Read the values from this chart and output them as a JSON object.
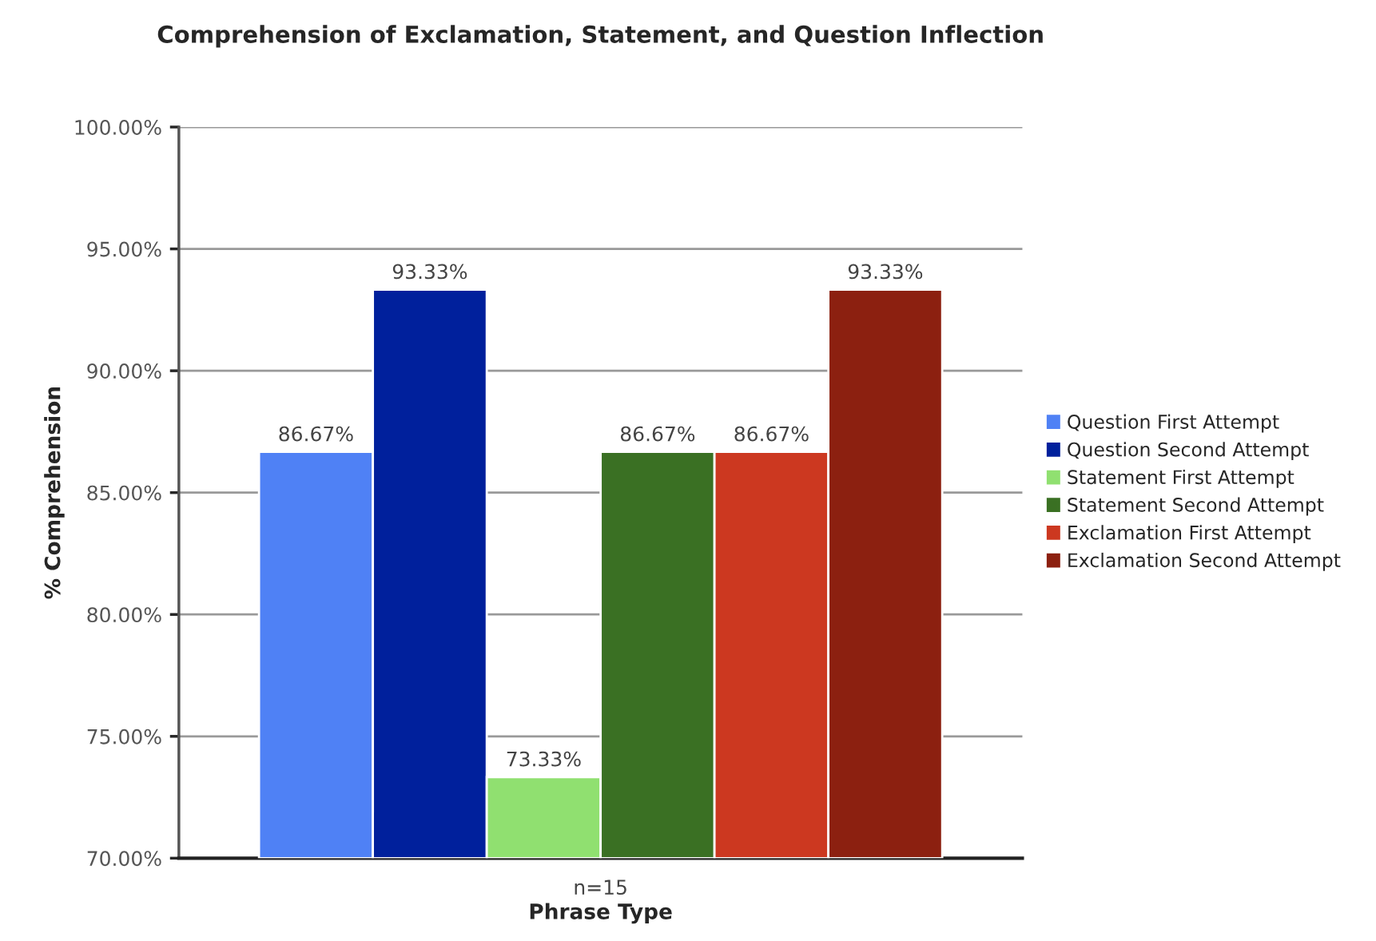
{
  "chart_data": {
    "type": "bar",
    "title": "Comprehension of Exclamation, Statement, and Question Inflection",
    "xlabel": "Phrase Type",
    "ylabel": "% Comprehension",
    "categories": [
      "n=15"
    ],
    "series": [
      {
        "name": "Question First Attempt",
        "color": "#4f81f5",
        "values": [
          86.67
        ],
        "value_labels": [
          "86.67%"
        ]
      },
      {
        "name": "Question Second Attempt",
        "color": "#00209c",
        "values": [
          93.33
        ],
        "value_labels": [
          "93.33%"
        ]
      },
      {
        "name": "Statement First Attempt",
        "color": "#90e070",
        "values": [
          73.33
        ],
        "value_labels": [
          "73.33%"
        ]
      },
      {
        "name": "Statement Second Attempt",
        "color": "#3a7023",
        "values": [
          86.67
        ],
        "value_labels": [
          "86.67%"
        ]
      },
      {
        "name": "Exclamation First Attempt",
        "color": "#cc3820",
        "values": [
          86.67
        ],
        "value_labels": [
          "86.67%"
        ]
      },
      {
        "name": "Exclamation Second Attempt",
        "color": "#8c2010",
        "values": [
          93.33
        ],
        "value_labels": [
          "93.33%"
        ]
      }
    ],
    "ylim": [
      70,
      100
    ],
    "yticks": [
      {
        "value": 70,
        "label": "70.00%"
      },
      {
        "value": 75,
        "label": "75.00%"
      },
      {
        "value": 80,
        "label": "80.00%"
      },
      {
        "value": 85,
        "label": "85.00%"
      },
      {
        "value": 90,
        "label": "90.00%"
      },
      {
        "value": 95,
        "label": "95.00%"
      },
      {
        "value": 100,
        "label": "100.00%"
      }
    ],
    "grid": "y",
    "legend": "right"
  }
}
